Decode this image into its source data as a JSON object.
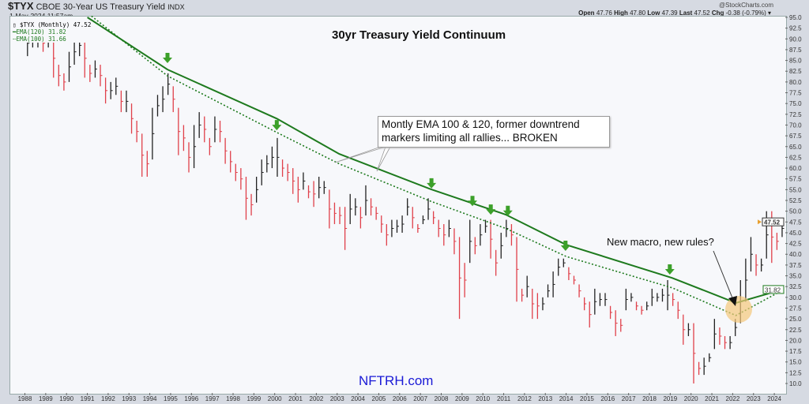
{
  "header": {
    "symbol": "$TYX",
    "symbol_desc": "CBOE 30-Year US Treasury Yield",
    "exchange": "INDX",
    "date": "1-May-2024 11:57am",
    "source": "@StockCharts.com",
    "open_label": "Open",
    "open": "47.76",
    "high_label": "High",
    "high": "47.80",
    "low_label": "Low",
    "low": "47.39",
    "last_label": "Last",
    "last": "47.52",
    "chg_label": "Chg",
    "chg": "-0.38 (-0.79%)"
  },
  "legend": {
    "price": "$TYX (Monthly) 47.52",
    "ema120": "EMA(120) 31.82",
    "ema100": "EMA(100) 31.66"
  },
  "annotations": {
    "callout_line1": "Montly EMA 100 & 120, former downtrend",
    "callout_line2": "markers limiting all rallies... BROKEN",
    "new_macro": "New macro, new rules?",
    "brand": "NFTRH.com"
  },
  "colors": {
    "up": "#222222",
    "down": "#e0404a",
    "ema": "#1e7a1e",
    "arrow": "#3ca02a",
    "highlight": "#f3c77a",
    "brand": "#1a1ad6"
  },
  "chart_data": {
    "type": "bar",
    "title": "30yr Treasury Yield Continuum",
    "xlim": [
      1987.6,
      2024.7
    ],
    "ylim": [
      9,
      95.5
    ],
    "y_ticks": [
      95.0,
      92.5,
      90.0,
      87.5,
      85.0,
      82.5,
      80.0,
      77.5,
      75.0,
      72.5,
      70.0,
      67.5,
      65.0,
      62.5,
      60.0,
      57.5,
      55.0,
      52.5,
      50.0,
      47.5,
      45.0,
      42.5,
      40.0,
      37.5,
      35.0,
      32.5,
      30.0,
      27.5,
      25.0,
      22.5,
      20.0,
      17.5,
      15.0,
      12.5,
      10.0
    ],
    "x_ticks": [
      "1988",
      "1989",
      "1990",
      "1991",
      "1992",
      "1993",
      "1994",
      "1995",
      "1996",
      "1997",
      "1998",
      "1999",
      "2000",
      "2001",
      "2002",
      "2003",
      "2004",
      "2005",
      "2006",
      "2007",
      "2008",
      "2009",
      "2010",
      "2011",
      "2012",
      "2013",
      "2014",
      "2015",
      "2016",
      "2017",
      "2018",
      "2019",
      "2020",
      "2021",
      "2022",
      "2023",
      "2024"
    ],
    "last_value": "47.52",
    "ema120_value": "31.82",
    "quarterly_low_high": [
      [
        86,
        92
      ],
      [
        88,
        92
      ],
      [
        88,
        93
      ],
      [
        87,
        91
      ],
      [
        88,
        92
      ],
      [
        81,
        90
      ],
      [
        79,
        84
      ],
      [
        78,
        82
      ],
      [
        80,
        87
      ],
      [
        84,
        90
      ],
      [
        86,
        91
      ],
      [
        81,
        90
      ],
      [
        80,
        84
      ],
      [
        81,
        85
      ],
      [
        79,
        84
      ],
      [
        75,
        81
      ],
      [
        76,
        80
      ],
      [
        77,
        81
      ],
      [
        73,
        78
      ],
      [
        73,
        78
      ],
      [
        68,
        75
      ],
      [
        66,
        71
      ],
      [
        58,
        68
      ],
      [
        58,
        64
      ],
      [
        62,
        74
      ],
      [
        72,
        77
      ],
      [
        73,
        79
      ],
      [
        77,
        82
      ],
      [
        73,
        79
      ],
      [
        63,
        74
      ],
      [
        64,
        70
      ],
      [
        59,
        66
      ],
      [
        60,
        70
      ],
      [
        67,
        73
      ],
      [
        66,
        72
      ],
      [
        63,
        67
      ],
      [
        66,
        72
      ],
      [
        66,
        71
      ],
      [
        61,
        67
      ],
      [
        59,
        64
      ],
      [
        57,
        61
      ],
      [
        55,
        60
      ],
      [
        48,
        58
      ],
      [
        49,
        54
      ],
      [
        52,
        58
      ],
      [
        56,
        62
      ],
      [
        59,
        63
      ],
      [
        60,
        65
      ],
      [
        58,
        67
      ],
      [
        58,
        62
      ],
      [
        57,
        61
      ],
      [
        54,
        60
      ],
      [
        52,
        58
      ],
      [
        55,
        59
      ],
      [
        53,
        56
      ],
      [
        51,
        57
      ],
      [
        53,
        58
      ],
      [
        54,
        57
      ],
      [
        46,
        55
      ],
      [
        47,
        52
      ],
      [
        47,
        51
      ],
      [
        41,
        51
      ],
      [
        47,
        54
      ],
      [
        49,
        53
      ],
      [
        46,
        51
      ],
      [
        49,
        56
      ],
      [
        49,
        53
      ],
      [
        48,
        51
      ],
      [
        45,
        49
      ],
      [
        42,
        47
      ],
      [
        44,
        48
      ],
      [
        45,
        48
      ],
      [
        45,
        49
      ],
      [
        49,
        53
      ],
      [
        46,
        51
      ],
      [
        45,
        47
      ],
      [
        47,
        49
      ],
      [
        48,
        53
      ],
      [
        47,
        50
      ],
      [
        44,
        48
      ],
      [
        42,
        47
      ],
      [
        44,
        48
      ],
      [
        40,
        46
      ],
      [
        25,
        44
      ],
      [
        30,
        38
      ],
      [
        38,
        48
      ],
      [
        40,
        44
      ],
      [
        42,
        47
      ],
      [
        45,
        48
      ],
      [
        39,
        48
      ],
      [
        35,
        41
      ],
      [
        39,
        45
      ],
      [
        44,
        48
      ],
      [
        42,
        47
      ],
      [
        29,
        44
      ],
      [
        29,
        32
      ],
      [
        30,
        35
      ],
      [
        25,
        32
      ],
      [
        25,
        31
      ],
      [
        27,
        30
      ],
      [
        30,
        33
      ],
      [
        30,
        36
      ],
      [
        35,
        39
      ],
      [
        37,
        39
      ],
      [
        34,
        37
      ],
      [
        33,
        35
      ],
      [
        30,
        33
      ],
      [
        27,
        30
      ],
      [
        23,
        29
      ],
      [
        26,
        32
      ],
      [
        28,
        31
      ],
      [
        28,
        31
      ],
      [
        25,
        28
      ],
      [
        21,
        27
      ],
      [
        22,
        25
      ],
      [
        27,
        32
      ],
      [
        29,
        31
      ],
      [
        27,
        29
      ],
      [
        26,
        28
      ],
      [
        27,
        29
      ],
      [
        28,
        32
      ],
      [
        29,
        31
      ],
      [
        29,
        32
      ],
      [
        27,
        34
      ],
      [
        28,
        31
      ],
      [
        25,
        29
      ],
      [
        19,
        26
      ],
      [
        21,
        24
      ],
      [
        10,
        24
      ],
      [
        12,
        15
      ],
      [
        12,
        16
      ],
      [
        15,
        17
      ],
      [
        18,
        25
      ],
      [
        19,
        23
      ],
      [
        18,
        21
      ],
      [
        18,
        21
      ],
      [
        21,
        25
      ],
      [
        24,
        34
      ],
      [
        29,
        39
      ],
      [
        36,
        44
      ],
      [
        35,
        40
      ],
      [
        36,
        39
      ],
      [
        39,
        50
      ],
      [
        38,
        50
      ],
      [
        41,
        45
      ],
      [
        44,
        48
      ]
    ],
    "series": [
      {
        "name": "EMA(120)",
        "style": "solid",
        "points": [
          [
            1991.0,
            95.0
          ],
          [
            1994.85,
            82.9
          ],
          [
            2000.1,
            71.5
          ],
          [
            2003.1,
            63.3
          ],
          [
            2007.5,
            55.1
          ],
          [
            2011.1,
            49.2
          ],
          [
            2014.0,
            42.2
          ],
          [
            2019.1,
            34.5
          ],
          [
            2022.15,
            28.7
          ],
          [
            2024.4,
            31.82
          ]
        ]
      },
      {
        "name": "EMA(100)",
        "style": "dotted",
        "points": [
          [
            1991.2,
            95.3
          ],
          [
            1994.85,
            81.4
          ],
          [
            2000.1,
            68.3
          ],
          [
            2003.1,
            61.0
          ],
          [
            2007.5,
            52.3
          ],
          [
            2011.1,
            46.0
          ],
          [
            2014.0,
            39.5
          ],
          [
            2019.1,
            32.2
          ],
          [
            2022.15,
            25.8
          ],
          [
            2024.4,
            31.66
          ]
        ]
      }
    ],
    "arrow_markers": [
      [
        1994.85,
        84.2
      ],
      [
        2000.1,
        68.6
      ],
      [
        2007.53,
        55.1
      ],
      [
        2009.5,
        51.0
      ],
      [
        2010.38,
        49.0
      ],
      [
        2011.2,
        48.7
      ],
      [
        2013.97,
        40.6
      ],
      [
        2018.98,
        35.1
      ]
    ]
  }
}
